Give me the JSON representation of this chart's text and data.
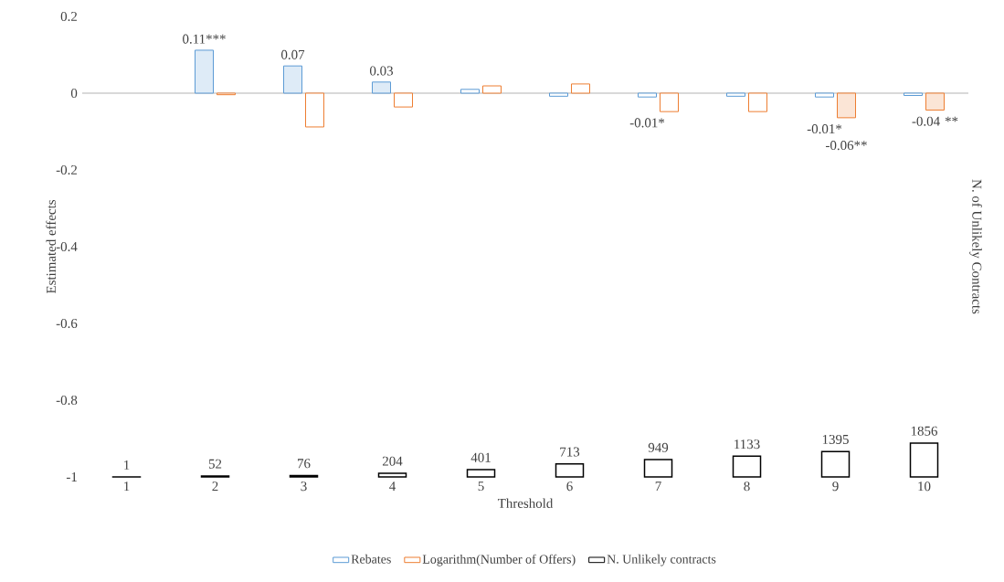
{
  "chart_data": {
    "type": "bar",
    "xlabel": "Threshold",
    "ylabel": "Estimated effects",
    "y2label": "N. of Unlikely Contracts",
    "categories": [
      "1",
      "2",
      "3",
      "4",
      "5",
      "6",
      "7",
      "8",
      "9",
      "10"
    ],
    "ylim": [
      -1,
      0.2
    ],
    "yticks": [
      0.2,
      0,
      -0.2,
      -0.4,
      -0.6,
      -0.8,
      -1
    ],
    "legend": "bottom",
    "series": [
      {
        "name": "Rebates",
        "color": "#5b9bd5",
        "colors": [
          "#ffffff",
          "#deebf7",
          "#deebf7",
          "#deebf7",
          "#ffffff",
          "#ffffff",
          "#ffffff",
          "#ffffff",
          "#ffffff",
          "#ffffff"
        ],
        "values": [
          null,
          0.112,
          0.071,
          0.029,
          0.01,
          -0.008,
          -0.01,
          -0.008,
          -0.01,
          -0.006
        ],
        "value_labels": [
          null,
          "0.11***",
          "0.07",
          "0.03",
          null,
          null,
          "-0.01*",
          null,
          "-0.01*",
          null
        ]
      },
      {
        "name": "Logarithm(Number of Offers)",
        "color": "#ed7d31",
        "colors": [
          "#ffffff",
          "#ffffff",
          "#ffffff",
          "#ffffff",
          "#ffffff",
          "#ffffff",
          "#ffffff",
          "#ffffff",
          "#fbe5d6",
          "#fbe5d6"
        ],
        "values": [
          null,
          -0.004,
          -0.088,
          -0.036,
          0.019,
          0.024,
          -0.048,
          -0.048,
          -0.064,
          -0.044
        ],
        "value_labels": [
          null,
          null,
          null,
          null,
          null,
          null,
          null,
          null,
          "-0.06**",
          "-0.04 **"
        ]
      },
      {
        "name": "N. Unlikely contracts",
        "color": "#000000",
        "axis": "y2",
        "colors": [
          "#ffffff",
          "#ffffff",
          "#ffffff",
          "#ffffff",
          "#ffffff",
          "#ffffff",
          "#ffffff",
          "#ffffff",
          "#ffffff",
          "#ffffff"
        ],
        "values": [
          1,
          52,
          76,
          204,
          401,
          713,
          949,
          1133,
          1395,
          1856
        ],
        "value_labels": [
          "1",
          "52",
          "76",
          "204",
          "401",
          "713",
          "949",
          "1133",
          "1395",
          "1856"
        ]
      }
    ]
  }
}
